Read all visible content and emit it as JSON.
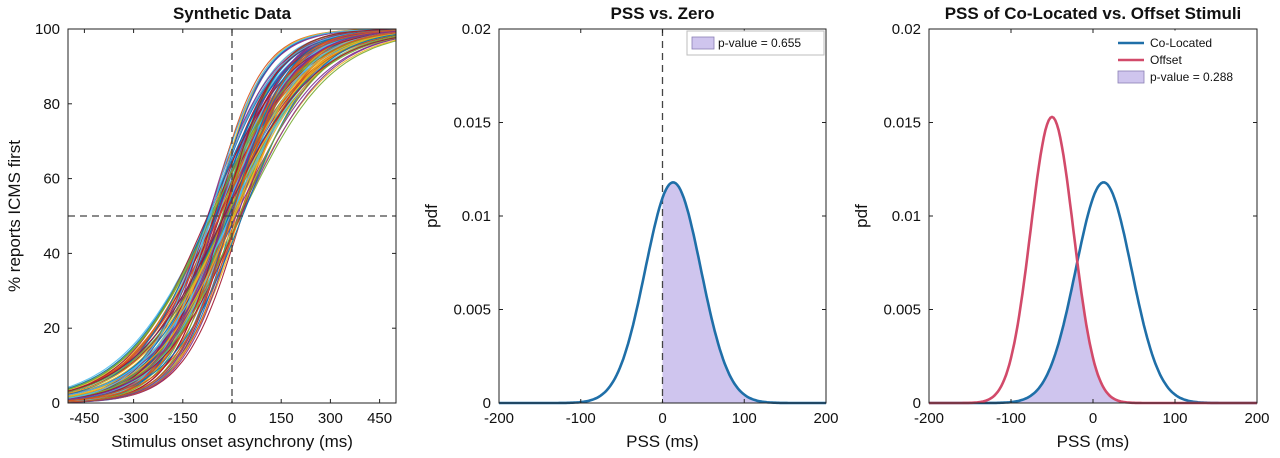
{
  "chart_data": [
    {
      "type": "line",
      "title": "Synthetic Data",
      "xlabel": "Stimulus onset asynchrony (ms)",
      "ylabel": "% reports ICMS first",
      "xlim": [
        -500,
        500
      ],
      "ylim": [
        0,
        100
      ],
      "xticks": [
        -450,
        -300,
        -150,
        0,
        150,
        300,
        450
      ],
      "yticks": [
        0,
        20,
        40,
        60,
        80,
        100
      ],
      "grid": false,
      "reference_lines": {
        "x": 0,
        "y": 50,
        "style": "dashed"
      },
      "series_description": "logistic psychometric curves",
      "curve_count": 100,
      "pss_range": [
        -75,
        35
      ],
      "slope_range": [
        75,
        140
      ],
      "palette": [
        "#0072BD",
        "#D95319",
        "#EDB120",
        "#7E2F8E",
        "#77AC30",
        "#4DBEEE",
        "#A2142F"
      ]
    },
    {
      "type": "area",
      "title": "PSS vs. Zero",
      "xlabel": "PSS (ms)",
      "ylabel": "pdf",
      "xlim": [
        -200,
        200
      ],
      "ylim": [
        0,
        0.02
      ],
      "xticks": [
        -200,
        -100,
        0,
        100,
        200
      ],
      "yticks": [
        0,
        0.005,
        0.01,
        0.015,
        0.02
      ],
      "ytick_labels": [
        "0",
        "0.005",
        "0.01",
        "0.015",
        "0.02"
      ],
      "reference_lines": {
        "x": 0,
        "style": "dashed"
      },
      "series": [
        {
          "curve": "normal",
          "mean": 13,
          "sd": 34,
          "peak": 0.0118,
          "color": "#1f6fa8",
          "shaded_from": 0,
          "shade_color": "#cfc5ee"
        }
      ],
      "legend": [
        {
          "label": "p-value = 0.655",
          "kind": "patch",
          "color": "#cfc5ee"
        }
      ],
      "legend_position": "top-right"
    },
    {
      "type": "area",
      "title": "PSS of Co-Located vs. Offset Stimuli",
      "xlabel": "PSS (ms)",
      "ylabel": "pdf",
      "xlim": [
        -200,
        200
      ],
      "ylim": [
        0,
        0.02
      ],
      "xticks": [
        -200,
        -100,
        0,
        100,
        200
      ],
      "yticks": [
        0,
        0.005,
        0.01,
        0.015,
        0.02
      ],
      "ytick_labels": [
        "0",
        "0.005",
        "0.01",
        "0.015",
        "0.02"
      ],
      "series": [
        {
          "name": "Co-Located",
          "curve": "normal",
          "mean": 13,
          "sd": 34,
          "peak": 0.0118,
          "color": "#1f6fa8"
        },
        {
          "name": "Offset",
          "curve": "normal",
          "mean": -50,
          "sd": 26,
          "peak": 0.0153,
          "color": "#d24a6a"
        }
      ],
      "overlap_shade_color": "#cfc5ee",
      "legend": [
        {
          "label": "Co-Located",
          "kind": "line",
          "color": "#1f6fa8"
        },
        {
          "label": "Offset",
          "kind": "line",
          "color": "#d24a6a"
        },
        {
          "label": "p-value = 0.288",
          "kind": "patch",
          "color": "#cfc5ee"
        }
      ],
      "legend_position": "top-right"
    }
  ]
}
